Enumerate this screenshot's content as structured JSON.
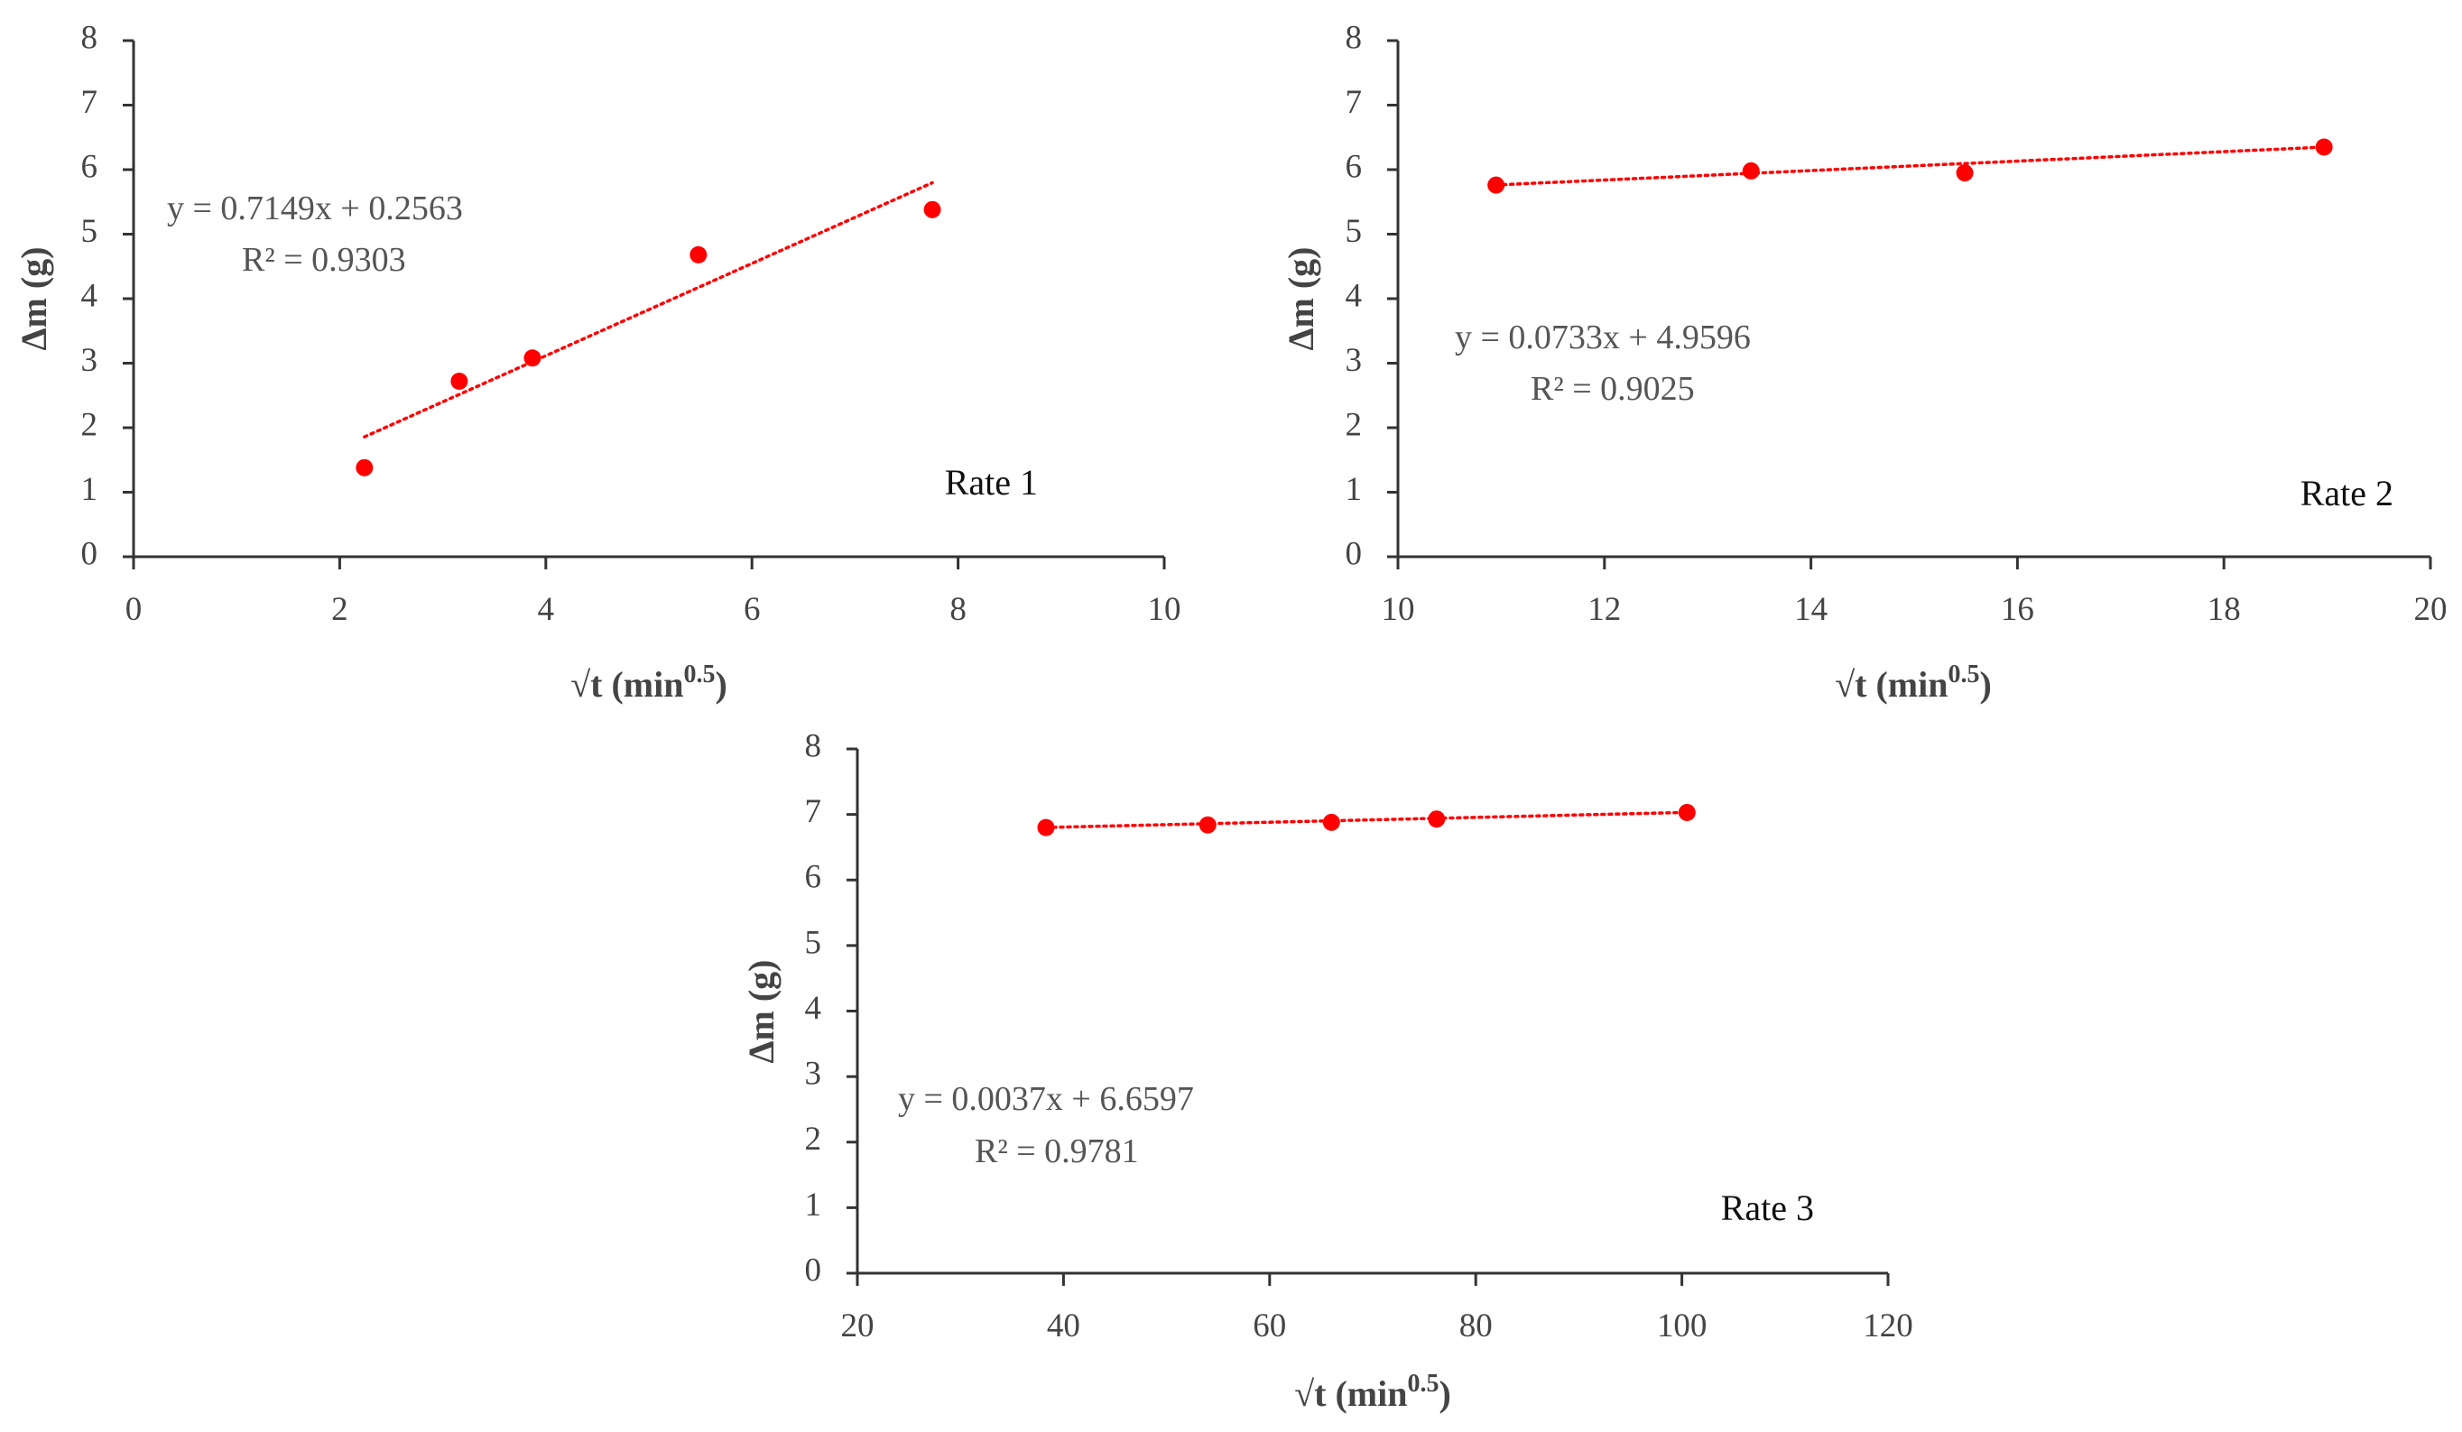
{
  "colors": {
    "series": "#ff0000",
    "trendline": "#ff0000",
    "axis": "#333333",
    "text": "#444444"
  },
  "chart_data": [
    {
      "type": "scatter",
      "label": "Rate 1",
      "xlabel": "√t (min",
      "xlabel_sup": "0.5",
      "xlabel_close": ")",
      "ylabel": "Δm (g)",
      "xlim": [
        0,
        10
      ],
      "ylim": [
        0,
        8
      ],
      "xticks": [
        0,
        2,
        4,
        6,
        8,
        10
      ],
      "yticks": [
        0,
        1,
        2,
        3,
        4,
        5,
        6,
        7,
        8
      ],
      "x": [
        2.24,
        3.16,
        3.87,
        5.48,
        7.75
      ],
      "y": [
        1.38,
        2.72,
        3.08,
        4.68,
        5.38
      ],
      "trendline": {
        "slope": 0.7149,
        "intercept": 0.2563,
        "x_range": [
          2.24,
          7.75
        ]
      },
      "equation": "y = 0.7149x + 0.2563",
      "r2": "R² = 0.9303"
    },
    {
      "type": "scatter",
      "label": "Rate 2",
      "xlabel": "√t (min",
      "xlabel_sup": "0.5",
      "xlabel_close": ")",
      "ylabel": "Δm (g)",
      "xlim": [
        10,
        20
      ],
      "ylim": [
        0,
        8
      ],
      "xticks": [
        10,
        12,
        14,
        16,
        18,
        20
      ],
      "yticks": [
        0,
        1,
        2,
        3,
        4,
        5,
        6,
        7,
        8
      ],
      "x": [
        10.95,
        13.42,
        15.49,
        18.97
      ],
      "y": [
        5.76,
        5.98,
        5.95,
        6.35
      ],
      "trendline": {
        "slope": 0.0733,
        "intercept": 4.9596,
        "x_range": [
          10.95,
          18.97
        ]
      },
      "equation": "y = 0.0733x + 4.9596",
      "r2": "R² = 0.9025"
    },
    {
      "type": "scatter",
      "label": "Rate 3",
      "xlabel": "√t (min",
      "xlabel_sup": "0.5",
      "xlabel_close": ")",
      "ylabel": "Δm (g)",
      "xlim": [
        20,
        120
      ],
      "ylim": [
        0,
        8
      ],
      "xticks": [
        20,
        40,
        60,
        80,
        100,
        120
      ],
      "yticks": [
        0,
        1,
        2,
        3,
        4,
        5,
        6,
        7,
        8
      ],
      "x": [
        38.3,
        54.0,
        66.0,
        76.2,
        100.5
      ],
      "y": [
        6.8,
        6.84,
        6.88,
        6.93,
        7.03
      ],
      "trendline": {
        "slope": 0.0037,
        "intercept": 6.6597,
        "x_range": [
          38.3,
          100.5
        ]
      },
      "equation": "y = 0.0037x + 6.6597",
      "r2": "R² = 0.9781"
    }
  ]
}
